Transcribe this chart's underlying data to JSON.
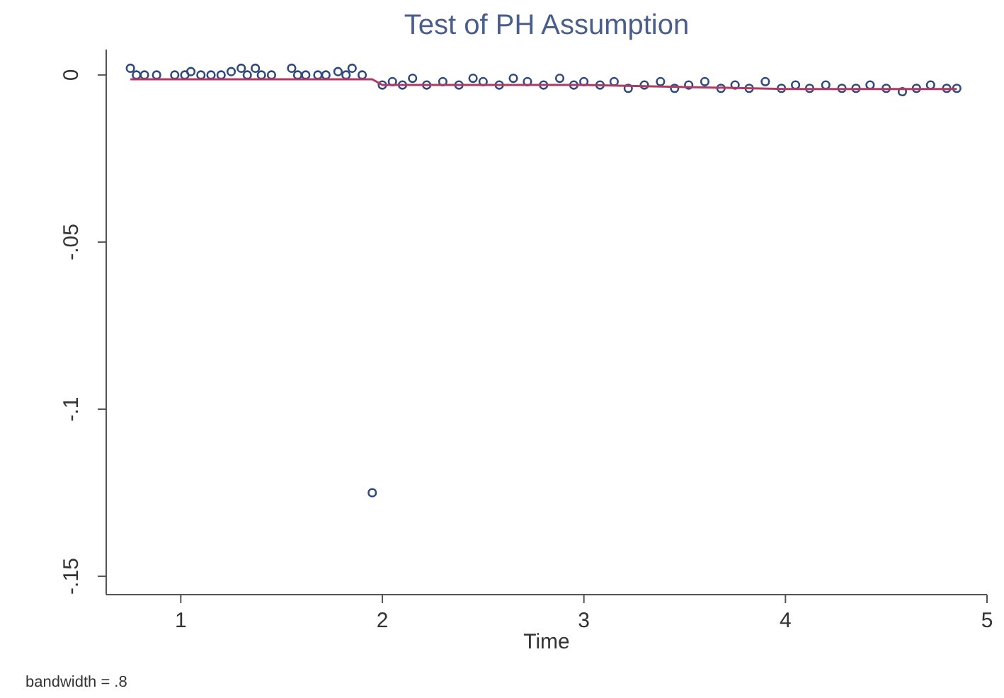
{
  "chart_data": {
    "type": "scatter",
    "title": "Test of PH Assumption",
    "xlabel": "Time",
    "annotations": [
      "bandwidth = .8"
    ],
    "xlim": [
      0.63,
      5
    ],
    "ylim": [
      -0.1555,
      0.0076
    ],
    "xticks": [
      1,
      2,
      3,
      4,
      5
    ],
    "yticks": [
      0,
      {
        "value": -0.05,
        "label": "-.05"
      },
      {
        "value": -0.1,
        "label": "-.1"
      },
      {
        "value": -0.15,
        "label": "-.15"
      }
    ],
    "grid": false,
    "series": [
      {
        "marker": "circle",
        "color": "#2e4a7c",
        "x": [
          0.75,
          0.78,
          0.82,
          0.88,
          0.97,
          1.02,
          1.05,
          1.1,
          1.15,
          1.2,
          1.25,
          1.3,
          1.33,
          1.37,
          1.4,
          1.45,
          1.55,
          1.58,
          1.62,
          1.68,
          1.72,
          1.78,
          1.82,
          1.85,
          1.9,
          1.95,
          2.0,
          2.05,
          2.1,
          2.15,
          2.22,
          2.3,
          2.38,
          2.45,
          2.5,
          2.58,
          2.65,
          2.72,
          2.8,
          2.88,
          2.95,
          3.0,
          3.08,
          3.15,
          3.22,
          3.3,
          3.38,
          3.45,
          3.52,
          3.6,
          3.68,
          3.75,
          3.82,
          3.9,
          3.98,
          4.05,
          4.12,
          4.2,
          4.28,
          4.35,
          4.42,
          4.5,
          4.58,
          4.65,
          4.72,
          4.8,
          4.85
        ],
        "values": [
          0.002,
          0,
          0,
          0,
          0,
          0,
          0.001,
          0,
          0,
          0,
          0.001,
          0.002,
          0,
          0.002,
          0,
          0,
          0.002,
          0,
          0,
          0,
          0,
          0.001,
          0,
          0.002,
          0,
          -0.125,
          -0.003,
          -0.002,
          -0.003,
          -0.001,
          -0.003,
          -0.002,
          -0.003,
          -0.001,
          -0.002,
          -0.003,
          -0.001,
          -0.002,
          -0.003,
          -0.001,
          -0.003,
          -0.002,
          -0.003,
          -0.002,
          -0.004,
          -0.003,
          -0.002,
          -0.004,
          -0.003,
          -0.002,
          -0.004,
          -0.003,
          -0.004,
          -0.002,
          -0.004,
          -0.003,
          -0.004,
          -0.003,
          -0.004,
          -0.004,
          -0.003,
          -0.004,
          -0.005,
          -0.004,
          -0.003,
          -0.004,
          -0.004
        ]
      },
      {
        "type": "line",
        "marker": "none",
        "line_style": "solid",
        "color": "#b03a63",
        "x": [
          0.75,
          1.95,
          2.0,
          3.0,
          4.0,
          4.85
        ],
        "values": [
          -0.0013,
          -0.0013,
          -0.003,
          -0.003,
          -0.0042,
          -0.0042
        ]
      }
    ]
  }
}
